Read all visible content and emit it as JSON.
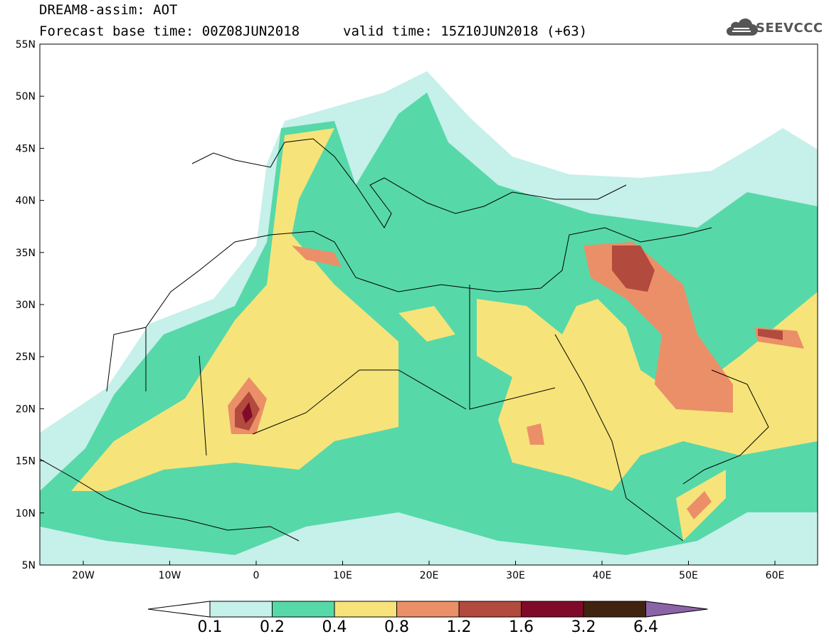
{
  "header": {
    "line1": "DREAM8-assim: AOT",
    "line2_left": "Forecast base time: 00Z08JUN2018",
    "line2_right": "valid time: 15Z10JUN2018 (+63)"
  },
  "logo": {
    "text": "SEEVCCC",
    "icon": "cloud-icon"
  },
  "axes": {
    "lat_labels": [
      "55N",
      "50N",
      "45N",
      "40N",
      "35N",
      "30N",
      "25N",
      "20N",
      "15N",
      "10N",
      "5N"
    ],
    "lon_labels": [
      "20W",
      "10W",
      "0",
      "10E",
      "20E",
      "30E",
      "40E",
      "50E",
      "60E"
    ]
  },
  "colorbar": {
    "labels": [
      "0.1",
      "0.2",
      "0.4",
      "0.8",
      "1.2",
      "1.6",
      "3.2",
      "6.4"
    ],
    "colors": [
      "#ffffff",
      "#c6f0ea",
      "#57d8a8",
      "#f6e47a",
      "#eb8f68",
      "#b24a3e",
      "#800a2a",
      "#412410",
      "#8b64a8"
    ]
  },
  "fields": {
    "c1": "#c6f0ea",
    "c2": "#57d8a8",
    "c3": "#f6e47a",
    "c4": "#eb8f68",
    "c5": "#b24a3e",
    "c6": "#800a2a"
  }
}
